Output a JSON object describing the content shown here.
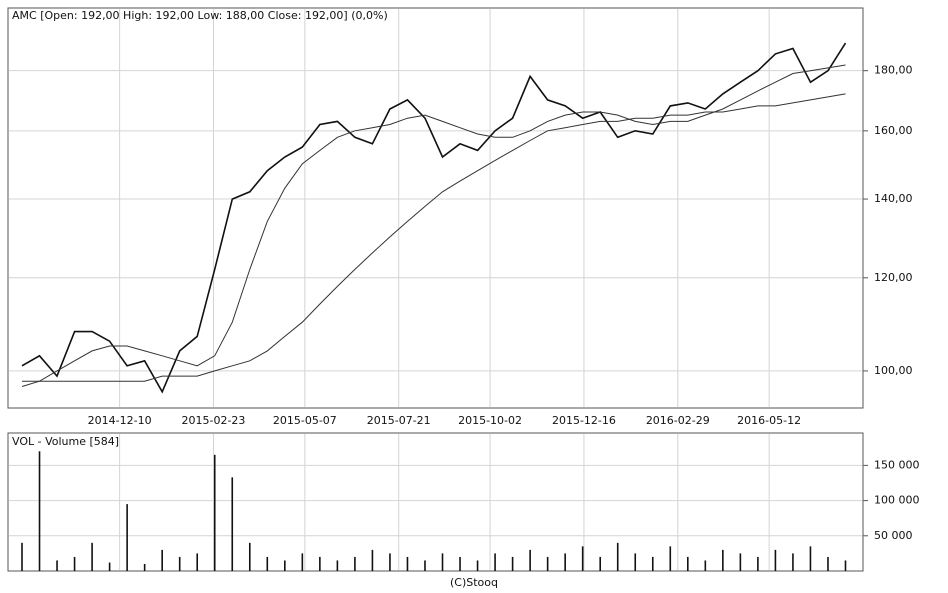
{
  "chart_data": [
    {
      "type": "line",
      "title": "AMC [Open: 192,00 High: 192,00 Low: 188,00 Close: 192,00] (0,0%)",
      "x": [
        "2014-09-23",
        "2014-10-07",
        "2014-10-21",
        "2014-11-04",
        "2014-11-18",
        "2014-12-02",
        "2014-12-16",
        "2014-12-30",
        "2015-01-13",
        "2015-01-27",
        "2015-02-10",
        "2015-02-24",
        "2015-03-10",
        "2015-03-24",
        "2015-04-07",
        "2015-04-21",
        "2015-05-05",
        "2015-05-19",
        "2015-06-02",
        "2015-06-16",
        "2015-06-30",
        "2015-07-14",
        "2015-07-28",
        "2015-08-11",
        "2015-08-25",
        "2015-09-08",
        "2015-09-22",
        "2015-10-06",
        "2015-10-20",
        "2015-11-03",
        "2015-11-17",
        "2015-12-01",
        "2015-12-15",
        "2015-12-29",
        "2016-01-12",
        "2016-01-26",
        "2016-02-09",
        "2016-02-23",
        "2016-03-08",
        "2016-03-22",
        "2016-04-05",
        "2016-04-19",
        "2016-05-03",
        "2016-05-17",
        "2016-05-31",
        "2016-06-14",
        "2016-06-28",
        "2016-07-12"
      ],
      "series": [
        {
          "color": "#111111",
          "values": [
            101,
            103,
            99,
            108,
            108,
            106,
            101,
            102,
            96,
            104,
            107,
            122,
            140,
            142,
            148,
            152,
            155,
            162,
            163,
            158,
            156,
            167,
            170,
            164,
            152,
            156,
            154,
            160,
            164,
            178,
            170,
            168,
            164,
            166,
            158,
            160,
            159,
            168,
            169,
            167,
            172,
            176,
            180,
            186,
            188,
            176,
            180,
            190
          ]
        },
        {
          "color": "#333333",
          "values": [
            97,
            98,
            100,
            102,
            104,
            105,
            105,
            104,
            103,
            102,
            101,
            103,
            110,
            122,
            134,
            143,
            150,
            154,
            158,
            160,
            161,
            162,
            164,
            165,
            163,
            161,
            159,
            158,
            158,
            160,
            163,
            165,
            166,
            166,
            165,
            163,
            162,
            163,
            163,
            165,
            167,
            170,
            173,
            176,
            179,
            180,
            181,
            182
          ]
        },
        {
          "color": "#333333",
          "values": [
            98,
            98,
            98,
            98,
            98,
            98,
            98,
            98,
            99,
            99,
            99,
            100,
            101,
            102,
            104,
            107,
            110,
            114,
            118,
            122,
            126,
            130,
            134,
            138,
            142,
            145,
            148,
            151,
            154,
            157,
            160,
            161,
            162,
            163,
            163,
            164,
            164,
            165,
            165,
            166,
            166,
            167,
            168,
            168,
            169,
            170,
            171,
            172
          ]
        }
      ],
      "xlim": [
        "2014-09-23",
        "2016-07-14"
      ],
      "xticks": [
        "2014-12-10",
        "2015-02-23",
        "2015-05-07",
        "2015-07-21",
        "2015-10-02",
        "2015-12-16",
        "2016-02-29",
        "2016-05-12"
      ],
      "ylim": [
        93,
        203.5
      ],
      "yticks": [
        {
          "value": 100,
          "label": "100,00"
        },
        {
          "value": 120,
          "label": "120,00"
        },
        {
          "value": 140,
          "label": "140,00"
        },
        {
          "value": 160,
          "label": "160,00"
        },
        {
          "value": 180,
          "label": "180,00"
        }
      ],
      "log_scale": true,
      "grid": true
    },
    {
      "type": "bar",
      "title": "VOL - Volume [584]",
      "x": [
        "2014-09-23",
        "2014-10-07",
        "2014-10-21",
        "2014-11-04",
        "2014-11-18",
        "2014-12-02",
        "2014-12-16",
        "2014-12-30",
        "2015-01-13",
        "2015-01-27",
        "2015-02-10",
        "2015-02-24",
        "2015-03-10",
        "2015-03-24",
        "2015-04-07",
        "2015-04-21",
        "2015-05-05",
        "2015-05-19",
        "2015-06-02",
        "2015-06-16",
        "2015-06-30",
        "2015-07-14",
        "2015-07-28",
        "2015-08-11",
        "2015-08-25",
        "2015-09-08",
        "2015-09-22",
        "2015-10-06",
        "2015-10-20",
        "2015-11-03",
        "2015-11-17",
        "2015-12-01",
        "2015-12-15",
        "2015-12-29",
        "2016-01-12",
        "2016-01-26",
        "2016-02-09",
        "2016-02-23",
        "2016-03-08",
        "2016-03-22",
        "2016-04-05",
        "2016-04-19",
        "2016-05-03",
        "2016-05-17",
        "2016-05-31",
        "2016-06-14",
        "2016-06-28",
        "2016-07-12"
      ],
      "values": [
        40000,
        170000,
        15000,
        20000,
        40000,
        12000,
        95000,
        10000,
        30000,
        20000,
        25000,
        165000,
        133000,
        40000,
        20000,
        15000,
        25000,
        20000,
        15000,
        20000,
        30000,
        25000,
        20000,
        15000,
        25000,
        20000,
        15000,
        25000,
        20000,
        30000,
        20000,
        25000,
        35000,
        20000,
        40000,
        25000,
        20000,
        35000,
        20000,
        15000,
        30000,
        25000,
        20000,
        30000,
        25000,
        35000,
        20000,
        15000
      ],
      "color": "#111111",
      "ylim": [
        0,
        196000
      ],
      "yticks": [
        {
          "value": 50000,
          "label": "50 000"
        },
        {
          "value": 100000,
          "label": "100 000"
        },
        {
          "value": 150000,
          "label": "150 000"
        }
      ],
      "grid": true
    }
  ],
  "footer": "(C)Stooq"
}
